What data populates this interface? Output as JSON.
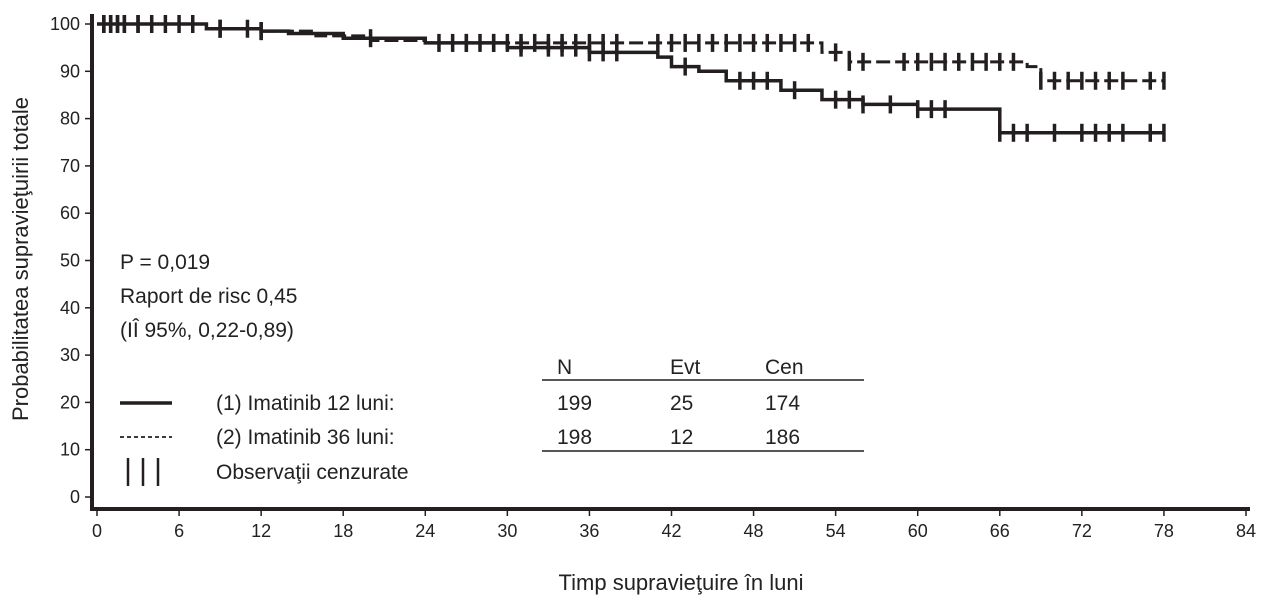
{
  "chart_data": {
    "type": "line",
    "chart_kind": "kaplan-meier survival curve",
    "title": "",
    "xlabel": "Timp supravieţuire în luni",
    "ylabel": "Probabilitatea supravieţuirii totale",
    "xlim": [
      0,
      84
    ],
    "ylim": [
      0,
      100
    ],
    "xticks": [
      0,
      6,
      12,
      18,
      24,
      30,
      36,
      42,
      48,
      54,
      60,
      66,
      72,
      78,
      84
    ],
    "yticks": [
      0,
      10,
      20,
      30,
      40,
      50,
      60,
      70,
      80,
      90,
      100
    ],
    "grid": false,
    "series": [
      {
        "name": "(1) Imatinib 12 luni:",
        "line_style": "solid",
        "color": "#231f20",
        "x": [
          0,
          3,
          8,
          12,
          14,
          18,
          24,
          30,
          36,
          41,
          42,
          44,
          46,
          50,
          53,
          56,
          60,
          65,
          66,
          78
        ],
        "y": [
          100,
          100,
          99,
          98.5,
          98,
          97,
          96,
          95,
          94,
          93,
          91,
          90,
          88,
          86,
          84,
          83,
          82,
          82,
          77,
          77
        ],
        "censored_x": [
          0.5,
          1,
          1.5,
          2,
          3,
          4,
          6,
          9,
          12,
          20,
          25,
          27,
          29,
          31,
          33,
          34,
          35,
          36,
          37,
          38,
          43,
          47,
          48,
          49,
          51,
          54,
          55,
          56,
          58,
          60,
          61,
          62,
          66,
          67,
          68,
          70,
          72,
          73,
          74,
          75,
          77,
          78
        ]
      },
      {
        "name": "(2) Imatinib 36 luni:",
        "line_style": "dashed",
        "color": "#231f20",
        "x": [
          0,
          4,
          8,
          12,
          16,
          20,
          24,
          30,
          36,
          42,
          48,
          53,
          55,
          60,
          64,
          68,
          69,
          78
        ],
        "y": [
          100,
          100,
          99,
          98.5,
          97.5,
          96.5,
          96,
          96,
          96,
          96,
          96,
          94,
          92,
          92,
          92,
          91,
          88,
          88
        ],
        "censored_x": [
          0.5,
          1,
          1.5,
          2,
          3,
          5,
          7,
          9,
          11,
          12,
          26,
          27,
          28,
          29,
          30,
          31,
          32,
          33,
          34,
          35,
          36,
          37,
          38,
          41,
          42,
          43,
          44,
          45,
          46,
          47,
          48,
          49,
          50,
          51,
          52,
          54,
          55,
          56,
          59,
          60,
          61,
          62,
          63,
          64,
          65,
          66,
          67,
          69,
          70,
          71,
          72,
          73,
          74,
          75,
          77,
          78
        ]
      }
    ],
    "annotations": {
      "p_value": "P = 0,019",
      "hazard_ratio": "Raport de risc 0,45",
      "ci": "(IÎ 95%, 0,22-0,89)"
    },
    "legend": {
      "placement": "bottom-left",
      "solid_label": "(1) Imatinib 12 luni:",
      "dashed_label": "(2) Imatinib 36 luni:",
      "censored_label": "Observaţii cenzurate"
    },
    "table": {
      "headers": [
        "N",
        "Evt",
        "Cen"
      ],
      "rows": [
        [
          "199",
          "25",
          "174"
        ],
        [
          "198",
          "12",
          "186"
        ]
      ]
    }
  }
}
